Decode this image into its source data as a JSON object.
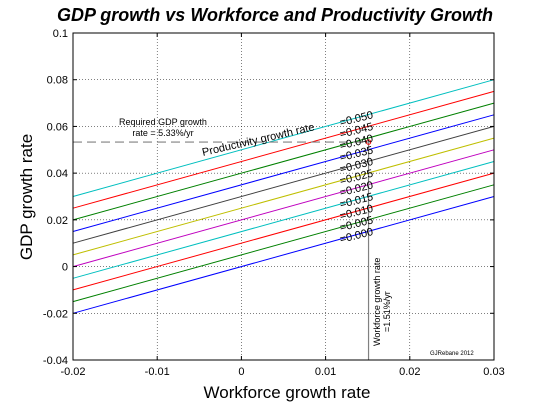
{
  "chart_data": {
    "type": "line",
    "title": "GDP growth vs Workforce and Productivity Growth",
    "xlabel": "Workforce growth rate",
    "ylabel": "GDP growth rate",
    "xlim": [
      -0.02,
      0.03
    ],
    "ylim": [
      -0.04,
      0.1
    ],
    "grid": true,
    "x_ticks": [
      -0.02,
      -0.01,
      0,
      0.01,
      0.02,
      0.03
    ],
    "x_tick_labels": [
      "-0.02",
      "-0.01",
      "0",
      "0.01",
      "0.02",
      "0.03"
    ],
    "y_ticks": [
      -0.04,
      -0.02,
      0,
      0.02,
      0.04,
      0.06,
      0.08,
      0.1
    ],
    "y_tick_labels": [
      "-0.04",
      "-0.02",
      "0",
      "0.02",
      "0.04",
      "0.06",
      "0.08",
      "0.1"
    ],
    "series": [
      {
        "label": "=0.000",
        "productivity": 0.0,
        "color": "#0000ff",
        "x": [
          -0.02,
          0.03
        ],
        "y": [
          -0.02,
          0.03
        ]
      },
      {
        "label": "=0.005",
        "productivity": 0.005,
        "color": "#008000",
        "x": [
          -0.02,
          0.03
        ],
        "y": [
          -0.015,
          0.035
        ]
      },
      {
        "label": "=0.010",
        "productivity": 0.01,
        "color": "#ff0000",
        "x": [
          -0.02,
          0.03
        ],
        "y": [
          -0.01,
          0.04
        ]
      },
      {
        "label": "=0.015",
        "productivity": 0.015,
        "color": "#00bfbf",
        "x": [
          -0.02,
          0.03
        ],
        "y": [
          -0.005,
          0.045
        ]
      },
      {
        "label": "=0.020",
        "productivity": 0.02,
        "color": "#bf00bf",
        "x": [
          -0.02,
          0.03
        ],
        "y": [
          0.0,
          0.05
        ]
      },
      {
        "label": "=0.025",
        "productivity": 0.025,
        "color": "#bfbf00",
        "x": [
          -0.02,
          0.03
        ],
        "y": [
          0.005,
          0.055
        ]
      },
      {
        "label": "=0.030",
        "productivity": 0.03,
        "color": "#404040",
        "x": [
          -0.02,
          0.03
        ],
        "y": [
          0.01,
          0.06
        ]
      },
      {
        "label": "=0.035",
        "productivity": 0.035,
        "color": "#0000ff",
        "x": [
          -0.02,
          0.03
        ],
        "y": [
          0.015,
          0.065
        ]
      },
      {
        "label": "=0.040",
        "productivity": 0.04,
        "color": "#008000",
        "x": [
          -0.02,
          0.03
        ],
        "y": [
          0.02,
          0.07
        ]
      },
      {
        "label": "=0.045",
        "productivity": 0.045,
        "color": "#ff0000",
        "x": [
          -0.02,
          0.03
        ],
        "y": [
          0.025,
          0.075
        ]
      },
      {
        "label": "=0.050",
        "productivity": 0.05,
        "color": "#00bfbf",
        "x": [
          -0.02,
          0.03
        ],
        "y": [
          0.03,
          0.08
        ]
      }
    ],
    "reference_lines": {
      "required_gdp": {
        "y": 0.0533,
        "x_end": 0.0151,
        "color": "#808080",
        "dash": true
      },
      "workforce_growth": {
        "x": 0.0151,
        "y_start": -0.04,
        "y_end": 0.0533,
        "color": "#808080"
      }
    },
    "marker": {
      "x": 0.0151,
      "y": 0.0533,
      "color": "#ff0000"
    },
    "annotations": {
      "productivity_label": "Productivity growth rate",
      "required_gdp_line1": "Required GDP growth",
      "required_gdp_line2": "rate = 5.33%/yr",
      "workforce_line1": "Workforce growth rate",
      "workforce_line2": "=1.51%/yr",
      "credit": "GJRebane 2012"
    }
  }
}
